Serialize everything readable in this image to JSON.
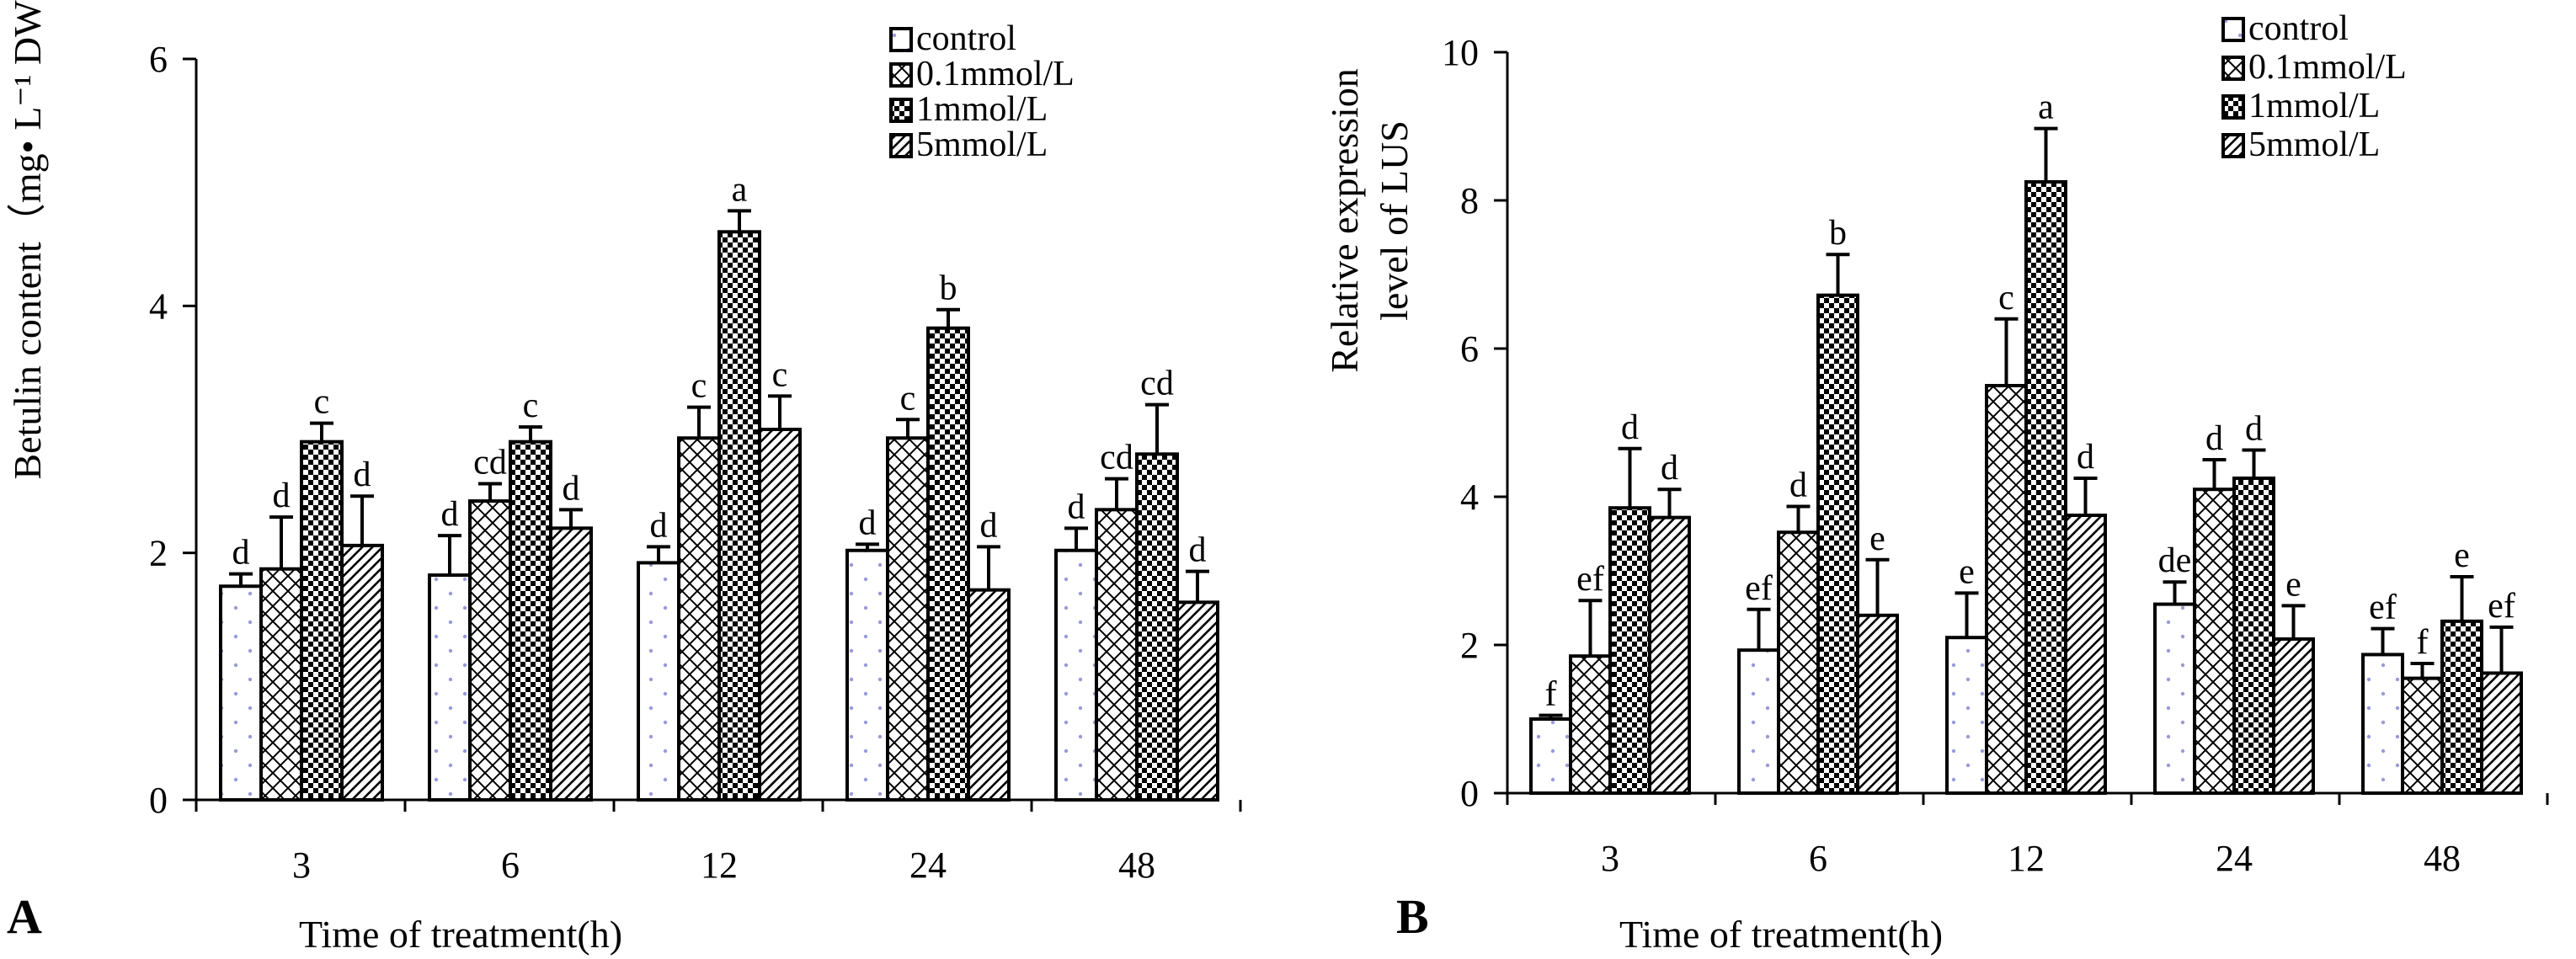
{
  "chart_data": [
    {
      "panel": "A",
      "type": "bar",
      "categories": [
        "3",
        "6",
        "12",
        "24",
        "48"
      ],
      "xlabel": "Time of treatment(h)",
      "ylabel": "Betulin content（mg• L⁻¹ DW）",
      "ylim": [
        0,
        6
      ],
      "yticks": [
        "0",
        "2",
        "4",
        "6"
      ],
      "series": [
        {
          "name": "control",
          "pattern": "dots",
          "values": [
            1.73,
            1.82,
            1.92,
            2.02,
            2.02
          ],
          "errors": [
            0.1,
            0.32,
            0.13,
            0.05,
            0.18
          ],
          "labels": [
            "d",
            "d",
            "d",
            "d",
            "d"
          ]
        },
        {
          "name": "0.1mmol/L",
          "pattern": "cross",
          "values": [
            1.87,
            2.42,
            2.93,
            2.93,
            2.35
          ],
          "errors": [
            0.42,
            0.14,
            0.25,
            0.15,
            0.25
          ],
          "labels": [
            "d",
            "cd",
            "c",
            "c",
            "cd"
          ]
        },
        {
          "name": "1mmol/L",
          "pattern": "check",
          "values": [
            2.9,
            2.9,
            4.6,
            3.82,
            2.8
          ],
          "errors": [
            0.15,
            0.12,
            0.17,
            0.15,
            0.4
          ],
          "labels": [
            "c",
            "c",
            "a",
            "b",
            "cd"
          ]
        },
        {
          "name": "5mmol/L",
          "pattern": "hatch",
          "values": [
            2.06,
            2.2,
            3.0,
            1.7,
            1.6
          ],
          "errors": [
            0.4,
            0.15,
            0.27,
            0.35,
            0.25
          ],
          "labels": [
            "d",
            "d",
            "c",
            "d",
            "d"
          ]
        }
      ]
    },
    {
      "panel": "B",
      "type": "bar",
      "categories": [
        "3",
        "6",
        "12",
        "24",
        "48"
      ],
      "xlabel": "Time of treatment(h)",
      "ylabel_line1": "Relative expression",
      "ylabel_line2": "level of LUS",
      "ylim": [
        0,
        10
      ],
      "yticks": [
        "0",
        "2",
        "4",
        "6",
        "8",
        "10"
      ],
      "series": [
        {
          "name": "control",
          "pattern": "dots",
          "values": [
            1.0,
            1.93,
            2.1,
            2.55,
            1.87
          ],
          "errors": [
            0.05,
            0.55,
            0.6,
            0.3,
            0.35
          ],
          "labels": [
            "f",
            "ef",
            "e",
            "de",
            "ef"
          ]
        },
        {
          "name": "0.1mmol/L",
          "pattern": "cross",
          "values": [
            1.85,
            3.52,
            5.5,
            4.1,
            1.55
          ],
          "errors": [
            0.75,
            0.35,
            0.9,
            0.4,
            0.2
          ],
          "labels": [
            "ef",
            "d",
            "c",
            "d",
            "f"
          ]
        },
        {
          "name": "1mmol/L",
          "pattern": "check",
          "values": [
            3.85,
            6.72,
            8.25,
            4.25,
            2.32
          ],
          "errors": [
            0.8,
            0.55,
            0.72,
            0.38,
            0.6
          ],
          "labels": [
            "d",
            "b",
            "a",
            "d",
            "e"
          ]
        },
        {
          "name": "5mmol/L",
          "pattern": "hatch",
          "values": [
            3.72,
            2.4,
            3.75,
            2.08,
            1.62
          ],
          "errors": [
            0.38,
            0.75,
            0.5,
            0.45,
            0.62
          ],
          "labels": [
            "d",
            "e",
            "d",
            "e",
            "ef"
          ]
        }
      ]
    }
  ]
}
